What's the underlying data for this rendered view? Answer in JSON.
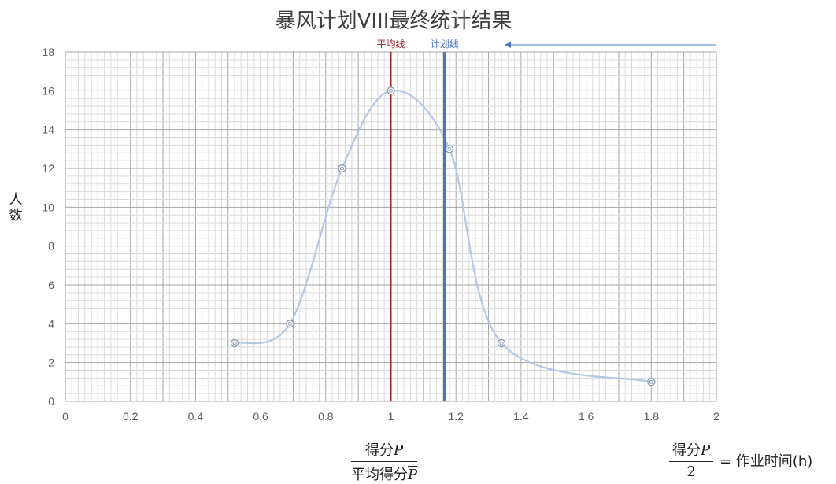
{
  "chart_data": {
    "type": "scatter",
    "title": "暴风计划VIII最终统计结果",
    "ylabel": "人数",
    "xlabel": {
      "numerator": "得分",
      "numerator_var": "P",
      "denominator": "平均得分",
      "denominator_var": "P"
    },
    "note": {
      "numerator": "得分",
      "numerator_var": "P",
      "denominator": "2",
      "rhs": "= 作业时间(h)"
    },
    "xlim": [
      0,
      2
    ],
    "ylim": [
      0,
      18
    ],
    "x_ticks": [
      "0",
      "0.2",
      "0.4",
      "0.6",
      "0.8",
      "1",
      "1.2",
      "1.4",
      "1.6",
      "1.8",
      "2"
    ],
    "y_ticks": [
      "0",
      "2",
      "4",
      "6",
      "8",
      "10",
      "12",
      "14",
      "16",
      "18"
    ],
    "grid": true,
    "series": [
      {
        "smooth": true,
        "points": [
          {
            "x": 0.52,
            "y": 3
          },
          {
            "x": 0.69,
            "y": 4
          },
          {
            "x": 0.85,
            "y": 12
          },
          {
            "x": 1.0,
            "y": 16
          },
          {
            "x": 1.18,
            "y": 13
          },
          {
            "x": 1.34,
            "y": 3
          },
          {
            "x": 1.8,
            "y": 1
          }
        ]
      }
    ],
    "vlines": [
      {
        "label": "平均线",
        "x": 1.0,
        "color": "#a31f24"
      },
      {
        "label": "计划线",
        "x": 1.165,
        "color": "#4a78c0"
      }
    ],
    "annotation_arrow": {
      "color": "#4a78c0",
      "direction": "left"
    },
    "colors": {
      "curve": "#b4c7e7",
      "marker": "#8497b0",
      "axis_text": "#595959",
      "grid": "#bfbfbf"
    }
  }
}
